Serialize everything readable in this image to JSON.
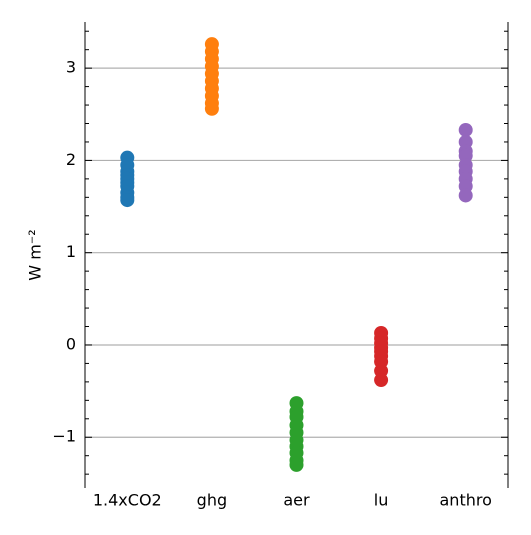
{
  "chart_data": {
    "type": "strip",
    "ylabel": "W m⁻²",
    "ylim": [
      -1.55,
      3.5
    ],
    "yticks": [
      {
        "value": -1,
        "label": "−1"
      },
      0,
      1,
      2,
      3
    ],
    "yminorticks": [
      -1.4,
      -1.2,
      -0.8,
      -0.6,
      -0.4,
      -0.2,
      0.2,
      0.4,
      0.6,
      0.8,
      1.2,
      1.4,
      1.6,
      1.8,
      2.2,
      2.4,
      2.6,
      2.8,
      3.2,
      3.4
    ],
    "grid": true,
    "series": [
      {
        "name": "1.4xCO2",
        "color": "#1f77b4",
        "values": [
          2.03,
          1.95,
          1.88,
          1.84,
          1.8,
          1.76,
          1.72,
          1.65,
          1.6,
          1.57
        ]
      },
      {
        "name": "ghg",
        "color": "#ff7f0e",
        "values": [
          3.26,
          3.18,
          3.1,
          3.02,
          2.94,
          2.86,
          2.78,
          2.7,
          2.62,
          2.56
        ]
      },
      {
        "name": "aer",
        "color": "#2ca02c",
        "values": [
          -0.63,
          -0.72,
          -0.78,
          -0.87,
          -0.95,
          -1.03,
          -1.1,
          -1.17,
          -1.25,
          -1.3
        ]
      },
      {
        "name": "lu",
        "color": "#d62728",
        "values": [
          0.13,
          0.07,
          0.02,
          -0.03,
          -0.07,
          -0.12,
          -0.18,
          -0.28,
          -0.38
        ]
      },
      {
        "name": "anthro",
        "color": "#9467bd",
        "values": [
          2.33,
          2.2,
          2.1,
          2.05,
          1.95,
          1.88,
          1.8,
          1.72,
          1.62
        ]
      }
    ]
  }
}
